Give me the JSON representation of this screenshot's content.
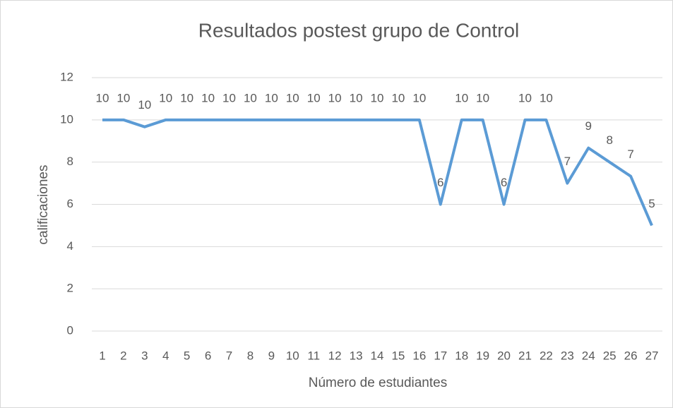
{
  "chart_data": {
    "type": "line",
    "title": "Resultados postest grupo de Control",
    "x_label": "Número de estudiantes",
    "y_label": "calificaciones",
    "categories": [
      "1",
      "2",
      "3",
      "4",
      "5",
      "6",
      "7",
      "8",
      "9",
      "10",
      "11",
      "12",
      "13",
      "14",
      "15",
      "16",
      "17",
      "18",
      "19",
      "20",
      "21",
      "22",
      "23",
      "24",
      "25",
      "26",
      "27"
    ],
    "series": [
      {
        "name": "calificaciones",
        "color": "#5b9bd5",
        "values": [
          10,
          10,
          9.67,
          10,
          10,
          10,
          10,
          10,
          10,
          10,
          10,
          10,
          10,
          10,
          10,
          10,
          6,
          10,
          10,
          6,
          10,
          10,
          7,
          8.67,
          8,
          7.33,
          5
        ],
        "value_labels": [
          "10",
          "10",
          "10",
          "10",
          "10",
          "10",
          "10",
          "10",
          "10",
          "10",
          "10",
          "10",
          "10",
          "10",
          "10",
          "10",
          "6",
          "10",
          "10",
          "6",
          "10",
          "10",
          "7",
          "9",
          "8",
          "7",
          "5"
        ]
      }
    ],
    "ylim": [
      0,
      12
    ],
    "yticks": [
      0,
      2,
      4,
      6,
      8,
      10,
      12
    ],
    "grid": true
  }
}
